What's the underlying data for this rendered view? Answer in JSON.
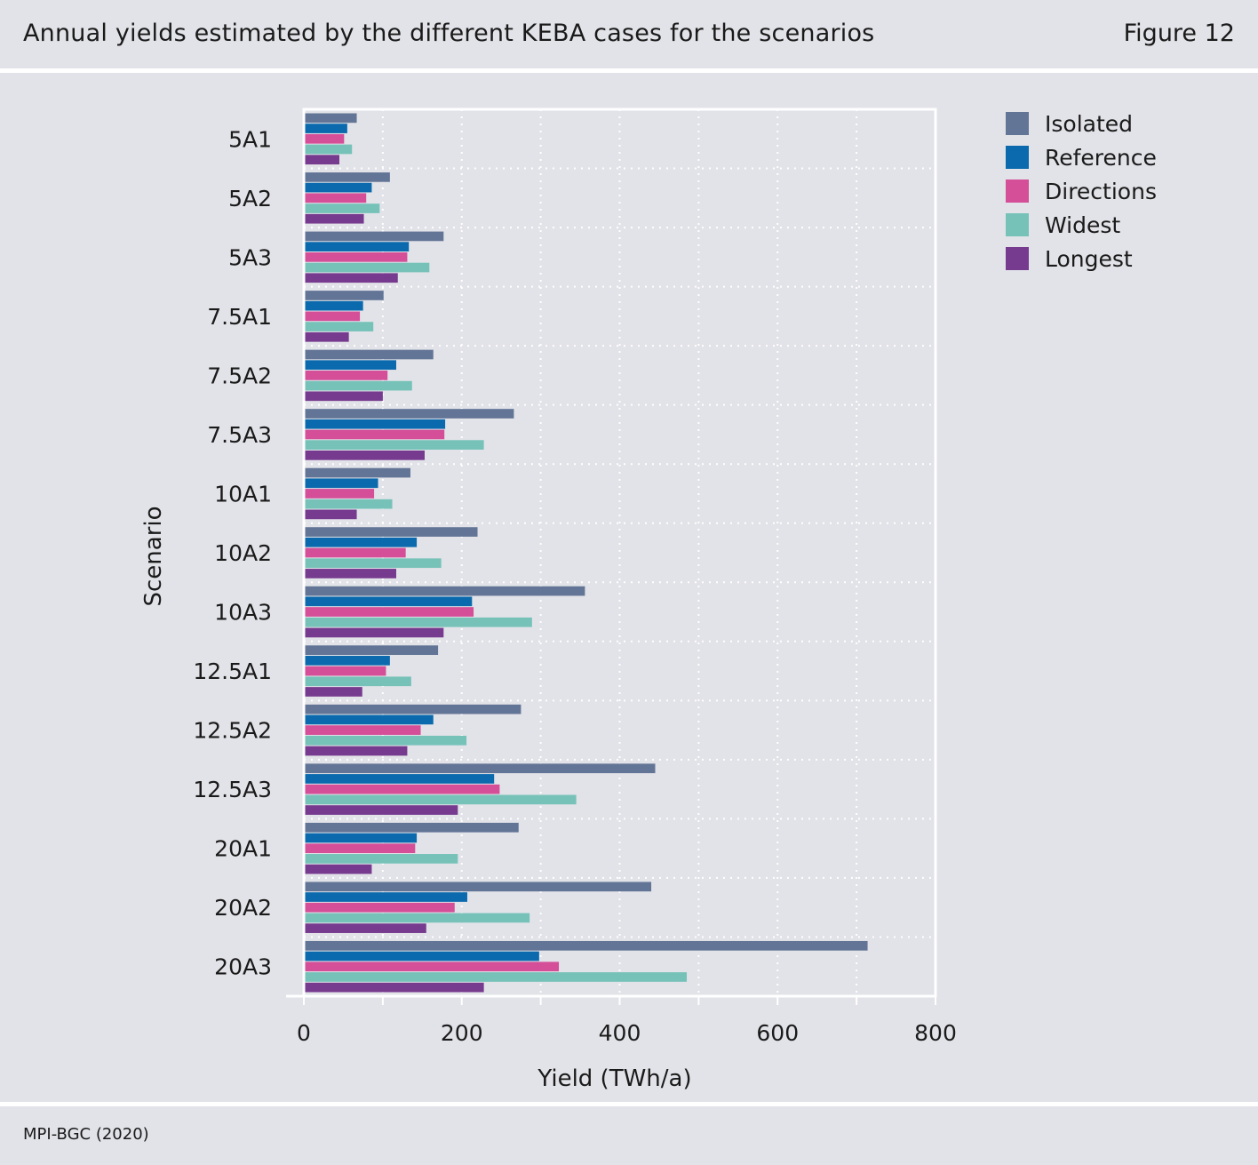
{
  "header": {
    "title": "Annual yields estimated by the different KEBA cases for the scenarios",
    "figure_label": "Figure 12"
  },
  "footer": {
    "source": "MPI-BGC (2020)"
  },
  "colors": {
    "Isolated": "#637596",
    "Reference": "#0b6aad",
    "Directions": "#d44e98",
    "Widest": "#76c2b9",
    "Longest": "#763a8e"
  },
  "chart_data": {
    "type": "bar",
    "orientation": "horizontal",
    "title": "",
    "xlabel": "Yield (TWh/a)",
    "ylabel": "Scenario",
    "xlim": [
      0,
      800
    ],
    "xticks": [
      0,
      200,
      400,
      600,
      800
    ],
    "legend_position": "top-right",
    "grid": "dotted",
    "categories": [
      "5A1",
      "5A2",
      "5A3",
      "7.5A1",
      "7.5A2",
      "7.5A3",
      "10A1",
      "10A2",
      "10A3",
      "12.5A1",
      "12.5A2",
      "12.5A3",
      "20A1",
      "20A2",
      "20A3"
    ],
    "series": [
      {
        "name": "Isolated",
        "values": [
          67,
          109,
          177,
          101,
          164,
          266,
          135,
          220,
          356,
          170,
          275,
          445,
          272,
          440,
          714
        ]
      },
      {
        "name": "Reference",
        "values": [
          55,
          86,
          133,
          75,
          117,
          179,
          94,
          143,
          213,
          109,
          164,
          241,
          143,
          207,
          298
        ]
      },
      {
        "name": "Directions",
        "values": [
          51,
          79,
          131,
          71,
          106,
          178,
          89,
          129,
          215,
          104,
          148,
          248,
          141,
          191,
          323
        ]
      },
      {
        "name": "Widest",
        "values": [
          61,
          96,
          159,
          88,
          137,
          228,
          112,
          174,
          289,
          136,
          206,
          345,
          195,
          286,
          485
        ]
      },
      {
        "name": "Longest",
        "values": [
          45,
          76,
          119,
          57,
          100,
          153,
          67,
          117,
          177,
          74,
          131,
          195,
          86,
          155,
          228
        ]
      }
    ]
  }
}
